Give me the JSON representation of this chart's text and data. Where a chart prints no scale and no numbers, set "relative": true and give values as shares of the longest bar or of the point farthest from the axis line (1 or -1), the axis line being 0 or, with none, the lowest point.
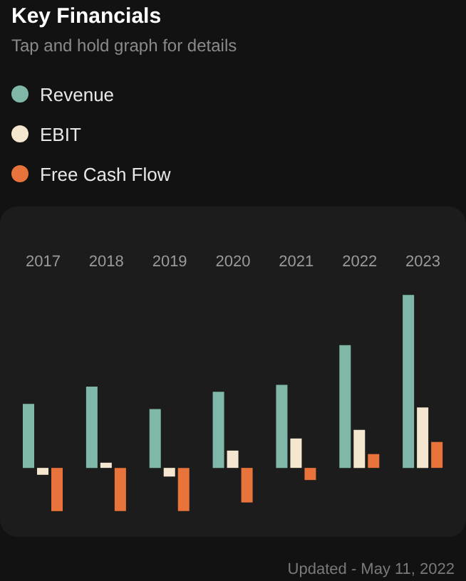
{
  "chart_data": {
    "type": "bar",
    "title": "Key Financials",
    "subtitle": "Tap and hold graph for details",
    "annotations": [
      "Updated - May 11, 2022"
    ],
    "relative": true,
    "legend": "top left",
    "grid": false,
    "categories": [
      "2017",
      "2018",
      "2019",
      "2020",
      "2021",
      "2022",
      "2023"
    ],
    "series": [
      {
        "name": "Revenue",
        "color": "#7fb8a8",
        "values": [
          0.37,
          0.47,
          0.34,
          0.44,
          0.48,
          0.71,
          1
        ]
      },
      {
        "name": "EBIT",
        "color": "#f5e6d0",
        "values": [
          -0.04,
          0.03,
          -0.05,
          0.1,
          0.17,
          0.22,
          0.35
        ]
      },
      {
        "name": "Free Cash Flow",
        "color": "#e8743b",
        "values": [
          -0.25,
          -0.25,
          -0.25,
          -0.2,
          -0.07,
          0.08,
          0.15
        ]
      }
    ]
  }
}
